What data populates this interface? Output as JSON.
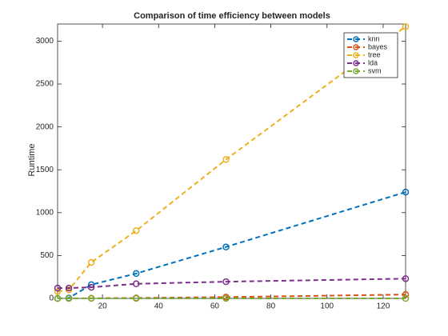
{
  "chart_data": {
    "type": "line",
    "title": "Comparison of time efficiency between models",
    "y_label": "Runtime",
    "x": [
      4,
      8,
      16,
      32,
      64,
      128
    ],
    "series": [
      {
        "name": "knn",
        "color": "#0072bd",
        "values": [
          0,
          5,
          160,
          290,
          600,
          1240
        ]
      },
      {
        "name": "bayes",
        "color": "#d95319",
        "values": [
          0,
          0,
          2,
          5,
          15,
          45
        ]
      },
      {
        "name": "tree",
        "color": "#edb120",
        "values": [
          80,
          100,
          420,
          790,
          1620,
          3170
        ]
      },
      {
        "name": "lda",
        "color": "#7e2f8e",
        "values": [
          120,
          120,
          130,
          170,
          195,
          230
        ]
      },
      {
        "name": "svm",
        "color": "#77ac30",
        "values": [
          0,
          0,
          0,
          0,
          0,
          0
        ]
      }
    ],
    "xlim": [
      4,
      128
    ],
    "xticks": [
      20,
      40,
      60,
      80,
      100,
      120
    ],
    "ylim": [
      0,
      3200
    ],
    "yticks": [
      0,
      500,
      1000,
      1500,
      2000,
      2500,
      3000
    ],
    "grid": false,
    "legend": "top-right"
  }
}
